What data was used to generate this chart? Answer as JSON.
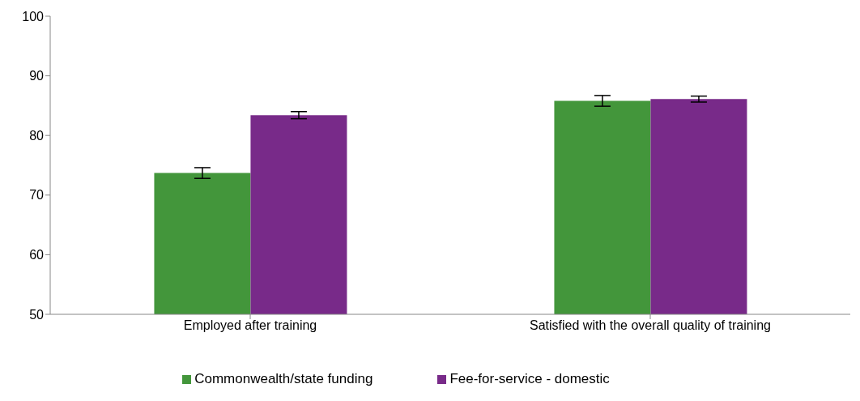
{
  "chart_data": {
    "type": "bar",
    "categories": [
      "Employed after training",
      "Satisfied with the overall quality of training"
    ],
    "series": [
      {
        "name": "Commonwealth/state funding",
        "color": "#43963b",
        "values": [
          73.7,
          85.8
        ],
        "errors": [
          0.9,
          0.9
        ]
      },
      {
        "name": "Fee-for-service - domestic",
        "color": "#782a89",
        "values": [
          83.4,
          86.1
        ],
        "errors": [
          0.6,
          0.5
        ]
      }
    ],
    "ylim": [
      50,
      100
    ],
    "yticks": [
      50,
      60,
      70,
      80,
      90,
      100
    ],
    "grid": false,
    "legend": "bottom"
  }
}
